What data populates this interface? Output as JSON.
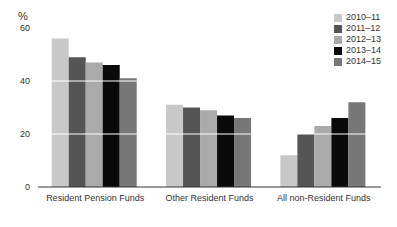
{
  "chart_data": {
    "type": "bar",
    "categories": [
      "Resident Pension Funds",
      "Other Resident Funds",
      "All non-Resident Funds"
    ],
    "series": [
      {
        "name": "2010–11",
        "color": "#c8c8c8",
        "values": [
          56,
          31,
          12
        ]
      },
      {
        "name": "2011–12",
        "color": "#555555",
        "values": [
          49,
          30,
          20
        ]
      },
      {
        "name": "2012–13",
        "color": "#aaaaaa",
        "values": [
          47,
          29,
          23
        ]
      },
      {
        "name": "2013–14",
        "color": "#0a0a0a",
        "values": [
          46,
          27,
          26
        ]
      },
      {
        "name": "2014–15",
        "color": "#777777",
        "values": [
          41,
          26,
          32
        ]
      }
    ],
    "ylabel": "%",
    "ylim": [
      0,
      60
    ],
    "yticks": [
      0,
      20,
      40,
      60
    ],
    "grid": true,
    "legend": "upper right"
  }
}
